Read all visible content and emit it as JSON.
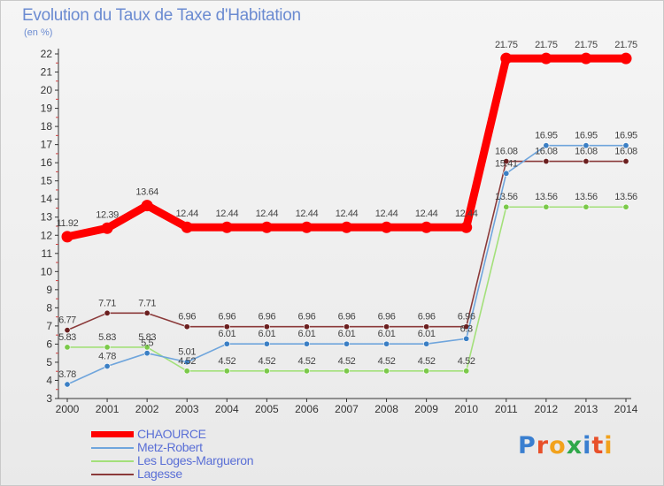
{
  "title": "Evolution du Taux de Taxe d'Habitation",
  "subtitle": "(en %)",
  "brand": {
    "letters": [
      "P",
      "r",
      "o",
      "x",
      "i",
      "t",
      "i"
    ],
    "colors": [
      "#3a7fd0",
      "#e8502a",
      "#f2a21c",
      "#2fa84a",
      "#3a7fd0",
      "#e8502a",
      "#f2a21c"
    ]
  },
  "chart_data": {
    "type": "line",
    "x": [
      "2000",
      "2001",
      "2002",
      "2003",
      "2004",
      "2005",
      "2006",
      "2007",
      "2008",
      "2009",
      "2010",
      "2011",
      "2012",
      "2013",
      "2014"
    ],
    "ylim": [
      3,
      22
    ],
    "yticks": [
      "3",
      "4",
      "5",
      "6",
      "7",
      "8",
      "9",
      "10",
      "11",
      "12",
      "13",
      "14",
      "15",
      "16",
      "17",
      "18",
      "19",
      "20",
      "21",
      "22"
    ],
    "grid": false,
    "legend_position": "bottom-left",
    "series": [
      {
        "name": "CHAOURCE",
        "color": "#ff0000",
        "marker": "#ff0000",
        "thick": true,
        "values": [
          11.92,
          12.39,
          13.64,
          12.44,
          12.44,
          12.44,
          12.44,
          12.44,
          12.44,
          12.44,
          12.44,
          21.75,
          21.75,
          21.75,
          21.75
        ],
        "labels": [
          "11.92",
          "12.39",
          "13.64",
          "12.44",
          "12.44",
          "12.44",
          "12.44",
          "12.44",
          "12.44",
          "12.44",
          "12.44",
          "21.75",
          "21.75",
          "21.75",
          "21.75"
        ]
      },
      {
        "name": "Metz-Robert",
        "color": "#6fa5dc",
        "marker": "#3b7fc4",
        "thick": false,
        "values": [
          3.78,
          4.78,
          5.5,
          5.01,
          6.01,
          6.01,
          6.01,
          6.01,
          6.01,
          6.01,
          6.3,
          15.41,
          16.95,
          16.95,
          16.95
        ],
        "labels": [
          "3.78",
          "4.78",
          "5.5",
          "5.01",
          "6.01",
          "6.01",
          "6.01",
          "6.01",
          "6.01",
          "6.01",
          "6.3",
          "15.41",
          "16.95",
          "16.95",
          "16.95"
        ]
      },
      {
        "name": "Les Loges-Margueron",
        "color": "#a3e07a",
        "marker": "#7bc94a",
        "thick": false,
        "values": [
          5.83,
          5.83,
          5.83,
          4.52,
          4.52,
          4.52,
          4.52,
          4.52,
          4.52,
          4.52,
          4.52,
          13.56,
          13.56,
          13.56,
          13.56
        ],
        "labels": [
          "5.83",
          "5.83",
          "5.83",
          "4.52",
          "4.52",
          "4.52",
          "4.52",
          "4.52",
          "4.52",
          "4.52",
          "4.52",
          "13.56",
          "13.56",
          "13.56",
          "13.56"
        ]
      },
      {
        "name": "Lagesse",
        "color": "#8b3a3a",
        "marker": "#6b1f1f",
        "thick": false,
        "values": [
          6.77,
          7.71,
          7.71,
          6.96,
          6.96,
          6.96,
          6.96,
          6.96,
          6.96,
          6.96,
          6.96,
          16.08,
          16.08,
          16.08,
          16.08
        ],
        "labels": [
          "6.77",
          "7.71",
          "7.71",
          "6.96",
          "6.96",
          "6.96",
          "6.96",
          "6.96",
          "6.96",
          "6.96",
          "6.96",
          "16.08",
          "16.08",
          "16.08",
          "16.08"
        ]
      }
    ]
  }
}
